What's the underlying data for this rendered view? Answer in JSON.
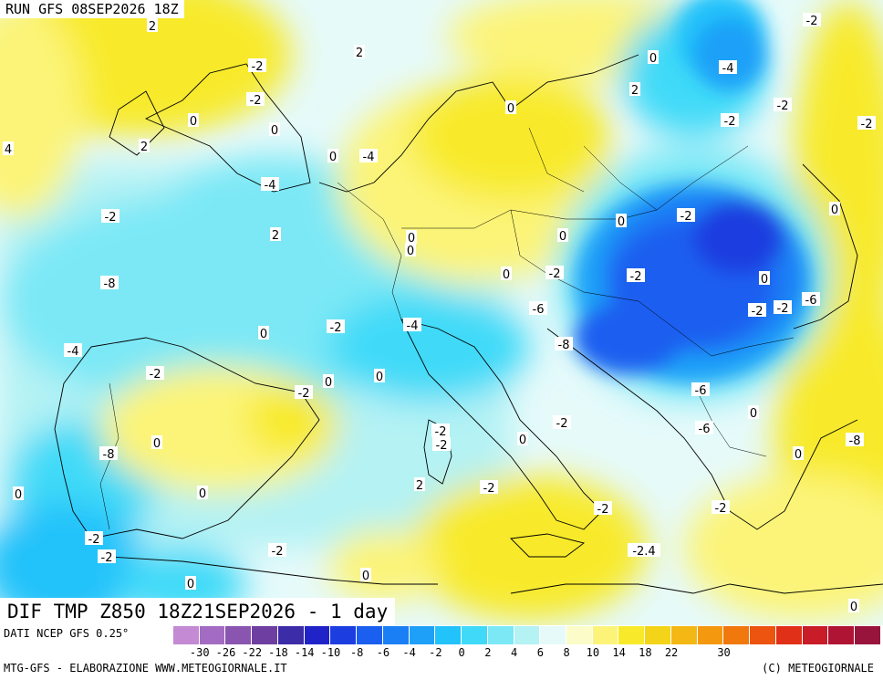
{
  "run_title": "RUN GFS 08SEP2026 18Z",
  "map_title": "DIF TMP Z850 18Z21SEP2026 - 1 day",
  "footer": {
    "data_source": "DATI NCEP GFS 0.25°",
    "credits_left": "MTG-GFS - ELABORAZIONE WWW.METEOGIORNALE.IT",
    "credits_right": "(C) METEOGIORNALE"
  },
  "legend": {
    "colors": [
      "#c48ad4",
      "#a36cc2",
      "#8a55b0",
      "#6e3fa0",
      "#3c2ca8",
      "#2024c8",
      "#1c3ee0",
      "#1a5ff0",
      "#1a7ff5",
      "#1fa0f8",
      "#22c2fa",
      "#40daf8",
      "#7ce8f6",
      "#b4f2f4",
      "#e6fafa",
      "#fcfcc8",
      "#fcf478",
      "#f8ea2a",
      "#f4d418",
      "#f4b814",
      "#f49810",
      "#f0780c",
      "#ec5410",
      "#e03018",
      "#c81c28",
      "#b01434",
      "#98143c"
    ],
    "tick_labels": [
      "-30",
      "-26",
      "-22",
      "-18",
      "-14",
      "-10",
      "-8",
      "-6",
      "-4",
      "-2",
      "0",
      "2",
      "4",
      "6",
      "8",
      "10",
      "14",
      "18",
      "22",
      "30"
    ],
    "tick_positions": [
      1,
      2,
      3,
      4,
      5,
      6,
      7,
      8,
      9,
      10,
      11,
      12,
      13,
      14,
      15,
      16,
      17,
      18,
      19,
      21
    ]
  },
  "colors": {
    "background": "#ffffff",
    "coast": "#000000",
    "isoline": "#ffffff"
  },
  "contour_labels": [
    "2",
    "-2",
    "2",
    "-2",
    "0",
    "4",
    "2",
    "0",
    "-2",
    "0",
    "2",
    "0",
    "-2",
    "-2",
    "-4",
    "-2",
    "-4",
    "0",
    "-4",
    "-2",
    "2",
    "0",
    "0",
    "0",
    "0",
    "0",
    "-2",
    "0",
    "-2",
    "-2",
    "0",
    "-2",
    "-6",
    "-2",
    "0",
    "-2",
    "-4",
    "-8",
    "-8",
    "-6",
    "-4",
    "-2",
    "0",
    "0",
    "-6",
    "-2",
    "0",
    "-2",
    "-2",
    "-8",
    "0",
    "-2",
    "0",
    "-6",
    "-8",
    "0",
    "0",
    "2",
    "-2",
    "-2",
    "-2",
    "0",
    "-2",
    "-2",
    "-2.4",
    "-2",
    "0",
    "0",
    "0",
    "2",
    "0",
    "2",
    "2",
    "0",
    "-2",
    "-4",
    "-6",
    "0",
    "-4",
    "2",
    "0",
    "0",
    "0"
  ]
}
